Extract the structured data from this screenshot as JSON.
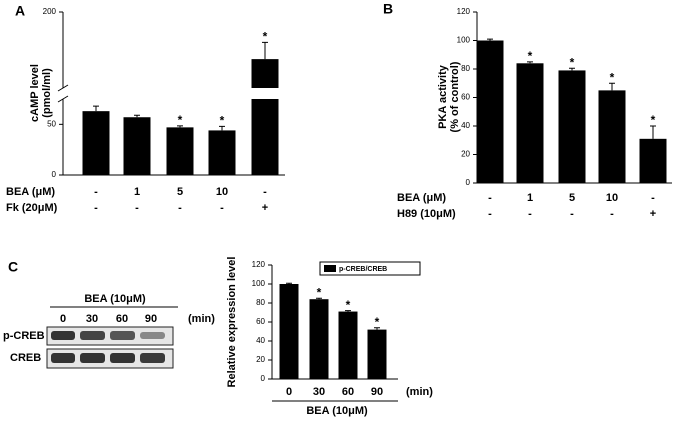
{
  "chart_data": [
    {
      "type": "bar",
      "panel": "A",
      "ylabel": [
        "cAMP level",
        "(pmol/ml)"
      ],
      "ylim": [
        0,
        200
      ],
      "yticks": [
        0,
        50,
        200
      ],
      "axis_break": [
        75,
        100
      ],
      "values": [
        63,
        57,
        47,
        44,
        138
      ],
      "errors": [
        5,
        2,
        1.5,
        4,
        22
      ],
      "color": "#000000",
      "significant": [
        false,
        false,
        true,
        true,
        true
      ],
      "significance_mark": "*",
      "treatments": [
        {
          "name": "BEA (μM)",
          "levels": [
            "-",
            "1",
            "5",
            "10",
            "-"
          ]
        },
        {
          "name": "Fk (20μM)",
          "levels": [
            "-",
            "-",
            "-",
            "-",
            "+"
          ]
        }
      ]
    },
    {
      "type": "bar",
      "panel": "B",
      "ylabel": [
        "PKA activity",
        "(% of control)"
      ],
      "ylim": [
        0,
        120
      ],
      "yticks": [
        0,
        20,
        40,
        60,
        80,
        100,
        120
      ],
      "values": [
        100,
        84,
        79,
        65,
        31
      ],
      "errors": [
        1,
        1,
        1.5,
        5,
        9
      ],
      "color": "#000000",
      "significant": [
        false,
        true,
        true,
        true,
        true
      ],
      "significance_mark": "*",
      "treatments": [
        {
          "name": "BEA (μM)",
          "levels": [
            "-",
            "1",
            "5",
            "10",
            "-"
          ]
        },
        {
          "name": "H89 (10μM)",
          "levels": [
            "-",
            "-",
            "-",
            "-",
            "+"
          ]
        }
      ]
    },
    {
      "type": "bar",
      "panel": "C",
      "ylabel": [
        "Relative expression level"
      ],
      "ylim": [
        0,
        120
      ],
      "yticks": [
        0,
        20,
        40,
        60,
        80,
        100,
        120
      ],
      "categories": [
        "0",
        "30",
        "60",
        "90"
      ],
      "x_unit": "(min)",
      "xlabel": "BEA (10μM)",
      "series": [
        {
          "name": "p-CREB/CREB",
          "color": "#000000",
          "values": [
            100,
            84,
            71,
            52
          ],
          "errors": [
            0.8,
            1,
            1,
            2
          ]
        }
      ],
      "significant": [
        false,
        true,
        true,
        true
      ],
      "significance_mark": "*",
      "blot": {
        "treatment": "BEA (10μM)",
        "times": [
          "0",
          "30",
          "60",
          "90"
        ],
        "unit": "(min)",
        "rows": [
          "p-CREB",
          "CREB"
        ]
      }
    }
  ]
}
